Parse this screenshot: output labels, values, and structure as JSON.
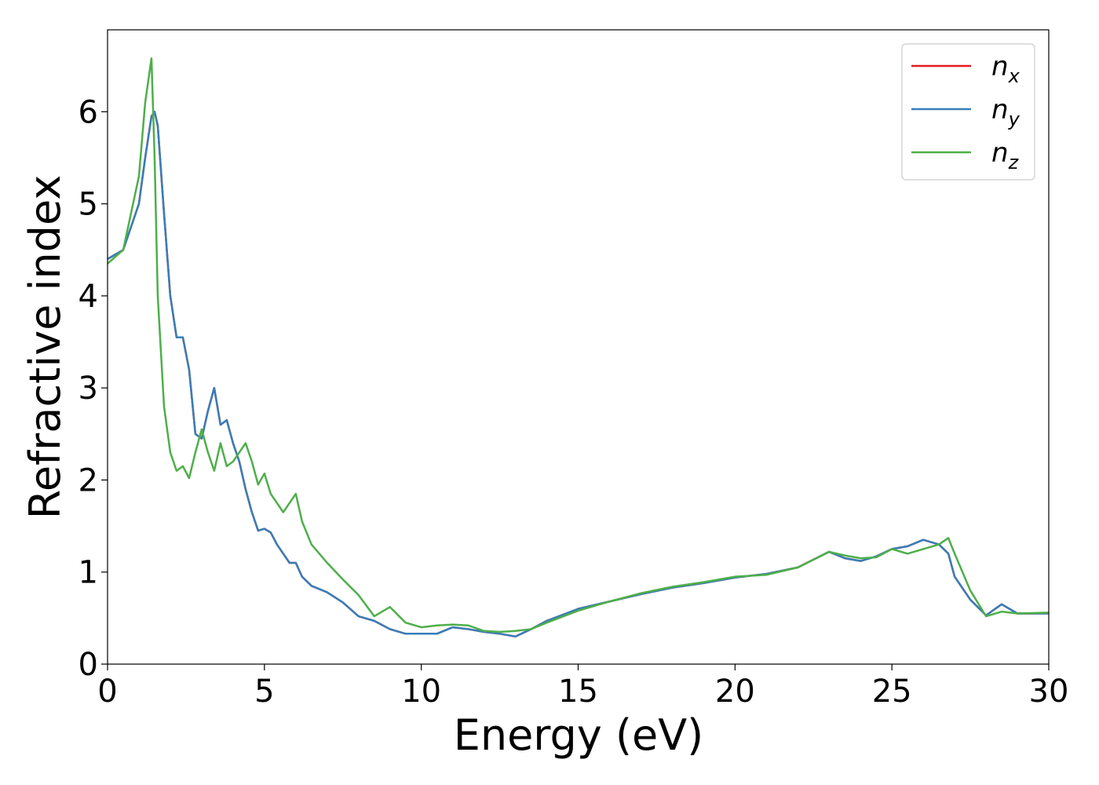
{
  "chart_data": {
    "type": "line",
    "xlabel": "Energy (eV)",
    "ylabel": "Refractive index",
    "x": [
      0,
      0.5,
      1,
      1.2,
      1.4,
      1.5,
      1.6,
      1.8,
      2,
      2.2,
      2.4,
      2.6,
      2.8,
      3,
      3.2,
      3.4,
      3.6,
      3.8,
      4,
      4.2,
      4.4,
      4.6,
      4.8,
      5,
      5.2,
      5.4,
      5.6,
      5.8,
      6,
      6.2,
      6.5,
      7,
      7.5,
      8,
      8.5,
      9,
      9.5,
      10,
      10.5,
      11,
      11.5,
      12,
      12.5,
      13,
      13.5,
      14,
      15,
      16,
      17,
      18,
      19,
      20,
      21,
      22,
      23,
      23.5,
      24,
      24.5,
      25,
      25.5,
      26,
      26.5,
      26.8,
      27,
      27.5,
      28,
      28.5,
      29,
      30
    ],
    "series": [
      {
        "name": "nx",
        "color": "#e41a1c",
        "values": [
          4.4,
          4.5,
          5.0,
          5.5,
          5.95,
          6.0,
          5.85,
          4.9,
          4.0,
          3.55,
          3.55,
          3.2,
          2.5,
          2.45,
          2.75,
          3.0,
          2.6,
          2.65,
          2.4,
          2.2,
          1.9,
          1.65,
          1.45,
          1.47,
          1.43,
          1.3,
          1.2,
          1.1,
          1.1,
          0.95,
          0.85,
          0.78,
          0.67,
          0.52,
          0.47,
          0.38,
          0.33,
          0.33,
          0.33,
          0.4,
          0.38,
          0.35,
          0.33,
          0.3,
          0.38,
          0.47,
          0.6,
          0.68,
          0.76,
          0.83,
          0.88,
          0.94,
          0.98,
          1.05,
          1.22,
          1.15,
          1.12,
          1.17,
          1.25,
          1.28,
          1.35,
          1.3,
          1.2,
          0.95,
          0.7,
          0.53,
          0.65,
          0.55,
          0.55
        ]
      },
      {
        "name": "ny",
        "color": "#377eb8",
        "values": [
          4.4,
          4.5,
          5.0,
          5.5,
          5.95,
          6.0,
          5.85,
          4.9,
          4.0,
          3.55,
          3.55,
          3.2,
          2.5,
          2.45,
          2.75,
          3.0,
          2.6,
          2.65,
          2.4,
          2.2,
          1.9,
          1.65,
          1.45,
          1.47,
          1.43,
          1.3,
          1.2,
          1.1,
          1.1,
          0.95,
          0.85,
          0.78,
          0.67,
          0.52,
          0.47,
          0.38,
          0.33,
          0.33,
          0.33,
          0.4,
          0.38,
          0.35,
          0.33,
          0.3,
          0.38,
          0.47,
          0.6,
          0.68,
          0.76,
          0.83,
          0.88,
          0.94,
          0.98,
          1.05,
          1.22,
          1.15,
          1.12,
          1.17,
          1.25,
          1.28,
          1.35,
          1.3,
          1.2,
          0.95,
          0.7,
          0.53,
          0.65,
          0.55,
          0.55
        ]
      },
      {
        "name": "nz",
        "color": "#4daf4a",
        "values": [
          4.35,
          4.5,
          5.3,
          6.1,
          6.58,
          5.5,
          4.0,
          2.8,
          2.3,
          2.1,
          2.15,
          2.02,
          2.3,
          2.55,
          2.3,
          2.1,
          2.4,
          2.15,
          2.2,
          2.3,
          2.4,
          2.2,
          1.95,
          2.07,
          1.85,
          1.75,
          1.65,
          1.75,
          1.85,
          1.55,
          1.3,
          1.1,
          0.92,
          0.75,
          0.52,
          0.62,
          0.45,
          0.4,
          0.42,
          0.43,
          0.42,
          0.36,
          0.35,
          0.36,
          0.38,
          0.45,
          0.58,
          0.68,
          0.77,
          0.84,
          0.89,
          0.95,
          0.97,
          1.05,
          1.22,
          1.18,
          1.15,
          1.16,
          1.25,
          1.2,
          1.25,
          1.3,
          1.37,
          1.2,
          0.8,
          0.52,
          0.57,
          0.55,
          0.56
        ]
      }
    ],
    "xlim": [
      0,
      30
    ],
    "xticks": [
      0,
      5,
      10,
      15,
      20,
      25,
      30
    ],
    "ylim": [
      0,
      6.89
    ],
    "yticks": [
      0,
      1,
      2,
      3,
      4,
      5,
      6
    ],
    "legend": "upper right"
  }
}
